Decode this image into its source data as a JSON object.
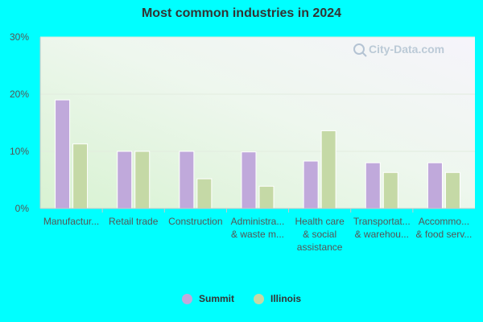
{
  "chart_data": {
    "type": "bar",
    "title": "Most common industries in 2024",
    "categories": [
      [
        "Manufactur..."
      ],
      [
        "Retail trade"
      ],
      [
        "Construction"
      ],
      [
        "Administra...",
        "& waste m..."
      ],
      [
        "Health care",
        "& social",
        "assistance"
      ],
      [
        "Transportat...",
        "& warehou..."
      ],
      [
        "Accommo...",
        "& food serv..."
      ]
    ],
    "series": [
      {
        "name": "Summit",
        "color": "#c0a9db",
        "values": [
          19.0,
          10.0,
          10.0,
          9.9,
          8.3,
          8.0,
          8.0
        ]
      },
      {
        "name": "Illinois",
        "color": "#c5d9a6",
        "values": [
          11.3,
          10.0,
          5.2,
          3.9,
          13.6,
          6.3,
          6.3
        ]
      }
    ],
    "ylim": [
      0,
      30
    ],
    "yticks": [
      "0%",
      "10%",
      "20%",
      "30%"
    ],
    "grid": true,
    "legend_position": "bottom"
  },
  "watermark": "City-Data.com"
}
